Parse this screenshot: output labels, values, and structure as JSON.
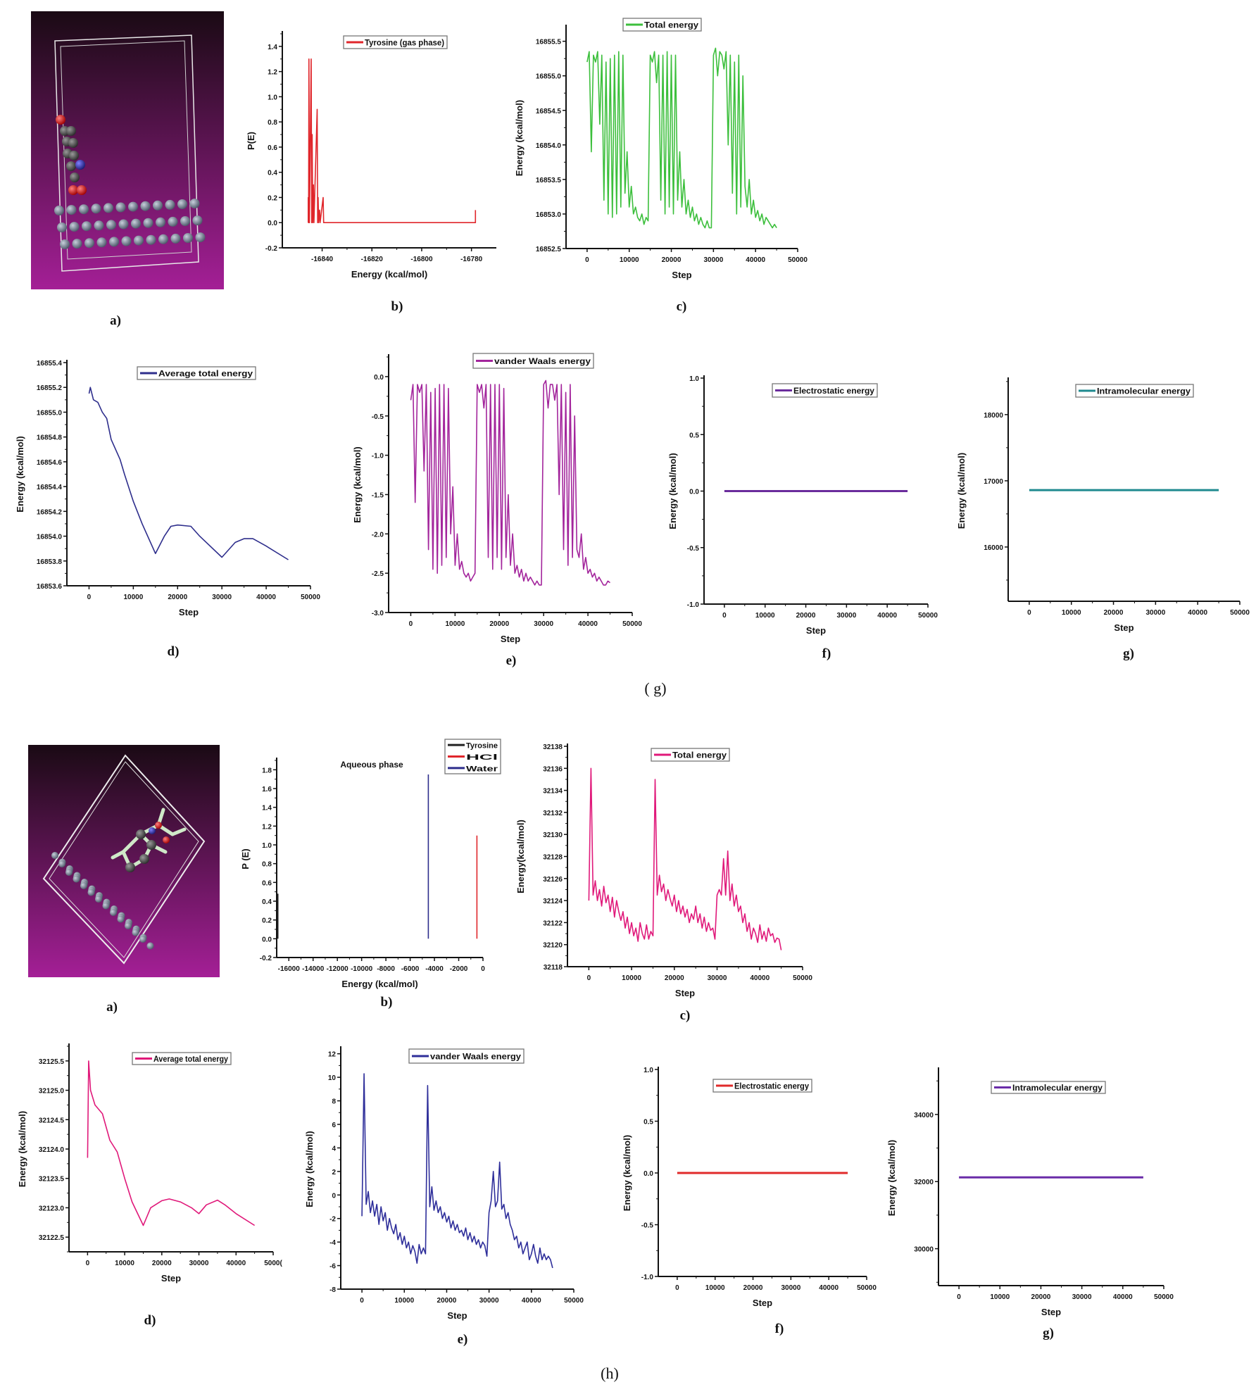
{
  "figure": {
    "captions": {
      "g": "( g)",
      "h": "(h)"
    },
    "panels_g": [
      "a)",
      "b)",
      "c)",
      "d)",
      "e)",
      "f)",
      "g)"
    ],
    "panels_h": [
      "a)",
      "b)",
      "c)",
      "d)",
      "e)",
      "f)",
      "g)"
    ],
    "molecule_colors": {
      "background_top": "#1a0a14",
      "background_bottom": "#a41f96",
      "surface_atom": "#6f7a8c",
      "carbon": "#4a4a4a",
      "oxygen": "#e01b1b",
      "nitrogen": "#2a2f8f",
      "hydrogen": "#cfe8c8"
    }
  },
  "chart_data": [
    {
      "type": "line",
      "mode": "impulse",
      "title": "",
      "xlabel": "Energy (kcal/mol)",
      "ylabel": "P(E)",
      "xlim": [
        -16856,
        -16770
      ],
      "ylim": [
        -0.2,
        1.5
      ],
      "xticks": [
        "-16840",
        "-16820",
        "-16800",
        "-16780"
      ],
      "yticks": [
        "-0.2",
        "0.0",
        "0.2",
        "0.4",
        "0.6",
        "0.8",
        "1.0",
        "1.2",
        "1.4"
      ],
      "legend": "top-center",
      "series": [
        {
          "name": "Tyrosine (gas phase)",
          "color": "#e0262b",
          "x": [
            -16845.6,
            -16845.6,
            -16845.45,
            -16845.3,
            -16845.1,
            -16844.4,
            -16844.2,
            -16844.0,
            -16843.8,
            -16843.5,
            -16843.3,
            -16842.0,
            -16841.8,
            -16841.6,
            -16841.4,
            -16841.0,
            -16840.8,
            -16839.6,
            -16839.4,
            -16778.4,
            -16778.4
          ],
          "y": [
            0,
            0.2,
            0,
            1.3,
            0,
            1.3,
            0,
            0.7,
            0,
            0.3,
            0,
            0.9,
            0,
            0.2,
            0,
            0.1,
            0,
            0.2,
            0,
            0,
            0.1
          ]
        }
      ]
    },
    {
      "type": "line",
      "title": "",
      "xlabel": "Step",
      "ylabel": "Energy (kcal/mol)",
      "xlim": [
        -5000,
        50000
      ],
      "ylim": [
        16852.5,
        16855.7
      ],
      "xticks": [
        "0",
        "10000",
        "20000",
        "30000",
        "40000",
        "50000"
      ],
      "yticks": [
        "16852.5",
        "16853.0",
        "16853.5",
        "16854.0",
        "16854.5",
        "16855.0",
        "16855.5"
      ],
      "legend": "top-center",
      "series": [
        {
          "name": "Total energy",
          "color": "#3cbf3c",
          "x_start": 0,
          "x_step": 500,
          "y": [
            16855.2,
            16855.35,
            16853.9,
            16855.3,
            16855.2,
            16855.35,
            16854.3,
            16855.3,
            16853.2,
            16855.2,
            16853.0,
            16855.25,
            16852.95,
            16855.3,
            16853.0,
            16855.35,
            16853.1,
            16855.3,
            16853.3,
            16853.9,
            16853.1,
            16853.4,
            16853.0,
            16853.1,
            16852.95,
            16852.9,
            16853.0,
            16852.85,
            16852.95,
            16852.9,
            16855.3,
            16855.2,
            16855.35,
            16854.9,
            16855.3,
            16853.2,
            16855.3,
            16853.0,
            16855.35,
            16853.1,
            16855.3,
            16853.0,
            16855.3,
            16853.2,
            16853.9,
            16853.1,
            16853.5,
            16853.0,
            16853.2,
            16852.95,
            16853.1,
            16852.9,
            16853.0,
            16852.85,
            16852.95,
            16852.85,
            16852.8,
            16852.9,
            16852.8,
            16852.8,
            16855.3,
            16855.4,
            16855.0,
            16855.35,
            16855.3,
            16855.1,
            16855.35,
            16854.0,
            16855.3,
            16853.3,
            16855.2,
            16853.0,
            16855.3,
            16853.1,
            16855.0,
            16853.4,
            16853.1,
            16853.5,
            16853.0,
            16853.2,
            16852.95,
            16853.05,
            16852.9,
            16853.0,
            16852.85,
            16852.95,
            16852.9,
            16852.85,
            16852.8,
            16852.85,
            16852.8
          ]
        }
      ]
    },
    {
      "type": "line",
      "title": "",
      "xlabel": "Step",
      "ylabel": "Energy (kcal/mol)",
      "xlim": [
        -5000,
        50000
      ],
      "ylim": [
        16853.6,
        16855.4
      ],
      "xticks": [
        "0",
        "10000",
        "20000",
        "30000",
        "40000",
        "50000"
      ],
      "yticks": [
        "16853.6",
        "16853.8",
        "16854.0",
        "16854.2",
        "16854.4",
        "16854.6",
        "16854.8",
        "16855.0",
        "16855.2",
        "16855.4"
      ],
      "legend": "top-center",
      "series": [
        {
          "name": "Average total energy",
          "color": "#2e2e8c",
          "x": [
            0,
            300,
            1000,
            2000,
            3000,
            4000,
            5000,
            6000,
            7000,
            8000,
            10000,
            12000,
            15000,
            17000,
            18500,
            20000,
            23000,
            25000,
            30000,
            33000,
            35000,
            37000,
            40000,
            45000
          ],
          "y": [
            16855.15,
            16855.2,
            16855.1,
            16855.08,
            16855.0,
            16854.95,
            16854.78,
            16854.7,
            16854.62,
            16854.5,
            16854.28,
            16854.1,
            16853.86,
            16854.0,
            16854.08,
            16854.09,
            16854.08,
            16854.0,
            16853.83,
            16853.95,
            16853.98,
            16853.98,
            16853.92,
            16853.81
          ]
        }
      ]
    },
    {
      "type": "line",
      "title": "",
      "xlabel": "Step",
      "ylabel": "Energy (kcal/mol)",
      "xlim": [
        -5000,
        50000
      ],
      "ylim": [
        -3.0,
        0.25
      ],
      "xticks": [
        "0",
        "10000",
        "20000",
        "30000",
        "40000",
        "50000"
      ],
      "yticks": [
        "-3.0",
        "-2.5",
        "-2.0",
        "-1.5",
        "-1.0",
        "-0.5",
        "0.0"
      ],
      "legend": "top-center",
      "series": [
        {
          "name": "vander Waals energy",
          "color": "#a3259c",
          "x_start": 0,
          "x_step": 500,
          "y": [
            -0.3,
            -0.1,
            -1.6,
            -0.1,
            -0.2,
            -0.1,
            -1.2,
            -0.1,
            -2.2,
            -0.2,
            -2.45,
            -0.15,
            -2.5,
            -0.1,
            -2.4,
            -0.1,
            -2.3,
            -0.15,
            -2.0,
            -1.4,
            -2.4,
            -2.0,
            -2.45,
            -2.35,
            -2.5,
            -2.55,
            -2.5,
            -2.6,
            -2.55,
            -2.5,
            -0.1,
            -0.2,
            -0.1,
            -0.4,
            -0.1,
            -2.3,
            -0.1,
            -2.45,
            -0.1,
            -2.3,
            -0.1,
            -2.45,
            -0.15,
            -2.3,
            -1.5,
            -2.4,
            -2.0,
            -2.5,
            -2.4,
            -2.55,
            -2.45,
            -2.6,
            -2.5,
            -2.6,
            -2.55,
            -2.6,
            -2.65,
            -2.6,
            -2.65,
            -2.65,
            -0.1,
            -0.05,
            -0.4,
            -0.1,
            -0.1,
            -0.3,
            -0.1,
            -1.5,
            -0.1,
            -2.2,
            -0.2,
            -2.4,
            -0.1,
            -2.3,
            -0.5,
            -2.2,
            -2.3,
            -2.0,
            -2.45,
            -2.3,
            -2.5,
            -2.45,
            -2.55,
            -2.5,
            -2.6,
            -2.55,
            -2.6,
            -2.65,
            -2.65,
            -2.6,
            -2.62
          ]
        }
      ]
    },
    {
      "type": "line",
      "title": "",
      "xlabel": "Step",
      "ylabel": "Energy (kcal/mol)",
      "xlim": [
        -5000,
        50000
      ],
      "ylim": [
        -1.0,
        1.0
      ],
      "xticks": [
        "0",
        "10000",
        "20000",
        "30000",
        "40000",
        "50000"
      ],
      "yticks": [
        "-1.0",
        "-0.5",
        "0.0",
        "0.5",
        "1.0"
      ],
      "legend": "top-center",
      "series": [
        {
          "name": "Electrostatic energy",
          "color": "#6a2c9c",
          "x": [
            0,
            45000
          ],
          "y": [
            0,
            0
          ]
        }
      ]
    },
    {
      "type": "line",
      "title": "",
      "xlabel": "Step",
      "ylabel": "Energy (kcal/mol)",
      "xlim": [
        -5000,
        50000
      ],
      "ylim": [
        15180,
        18520
      ],
      "xticks": [
        "0",
        "10000",
        "20000",
        "30000",
        "40000",
        "50000"
      ],
      "yticks": [
        "16000",
        "17000",
        "18000"
      ],
      "legend": "top-center",
      "series": [
        {
          "name": "Intramolecular energy",
          "color": "#1f8a8f",
          "x": [
            0,
            45000
          ],
          "y": [
            16860,
            16860
          ]
        }
      ]
    },
    {
      "type": "line",
      "mode": "impulse",
      "title": "Aqueous phase",
      "xlabel": "Energy (kcal/mol)",
      "ylabel": "P (E)",
      "xlim": [
        -17000,
        0
      ],
      "ylim": [
        -0.2,
        1.9
      ],
      "xticks": [
        "-16000",
        "-14000",
        "-12000",
        "-10000",
        "-8000",
        "-6000",
        "-4000",
        "-2000",
        "0"
      ],
      "yticks": [
        "-0.2",
        "0.0",
        "0.2",
        "0.4",
        "0.6",
        "0.8",
        "1.0",
        "1.2",
        "1.4",
        "1.6",
        "1.8"
      ],
      "legend": "top-right",
      "series": [
        {
          "name": "Tyrosine",
          "color": "#222222",
          "x": [
            -16900,
            -16900
          ],
          "y": [
            0,
            0.48
          ]
        },
        {
          "name": "HCl",
          "color": "#e0262b",
          "x": [
            -500,
            -500
          ],
          "y": [
            0,
            1.1
          ]
        },
        {
          "name": "Water",
          "color": "#2e2e8c",
          "x": [
            -4500,
            -4500
          ],
          "y": [
            0,
            1.75
          ]
        }
      ]
    },
    {
      "type": "line",
      "title": "",
      "xlabel": "Step",
      "ylabel": "Energy(kcal/mol)",
      "xlim": [
        -5000,
        50000
      ],
      "ylim": [
        32118,
        32138
      ],
      "xticks": [
        "0",
        "10000",
        "20000",
        "30000",
        "40000",
        "50000"
      ],
      "yticks": [
        "32118",
        "32120",
        "32122",
        "32124",
        "32126",
        "32128",
        "32130",
        "32132",
        "32134",
        "32136",
        "32138"
      ],
      "legend": "top-center",
      "series": [
        {
          "name": "Total energy",
          "color": "#e0197a",
          "x_start": 0,
          "x_step": 500,
          "y": [
            32124,
            32136,
            32124.5,
            32125.8,
            32124,
            32125,
            32123.5,
            32125.3,
            32123.8,
            32124.5,
            32123,
            32124.3,
            32122.5,
            32124,
            32123,
            32122.2,
            32123,
            32121.5,
            32122.5,
            32121,
            32122,
            32120.8,
            32121.5,
            32120.3,
            32122,
            32121,
            32120.5,
            32121.8,
            32120.5,
            32121.2,
            32120.8,
            32135,
            32124.5,
            32126.3,
            32124.8,
            32125.5,
            32124,
            32125,
            32124.2,
            32123.5,
            32124.5,
            32123,
            32124,
            32122.8,
            32123.5,
            32122.5,
            32123.2,
            32122,
            32122.8,
            32122.3,
            32123.5,
            32122,
            32122.8,
            32121.5,
            32122.5,
            32121.2,
            32122,
            32121.3,
            32121.5,
            32120.5,
            32124.5,
            32125,
            32124.5,
            32127.8,
            32124.5,
            32128.5,
            32124,
            32125.5,
            32123.5,
            32124.5,
            32123,
            32123.5,
            32122,
            32122.8,
            32121.2,
            32122,
            32120.5,
            32121.5,
            32121,
            32120.2,
            32121.8,
            32120.5,
            32121.2,
            32120.3,
            32121.5,
            32120.8,
            32121,
            32120.2,
            32120.6,
            32120.5,
            32119.5
          ]
        }
      ]
    },
    {
      "type": "line",
      "title": "",
      "xlabel": "Step",
      "ylabel": "Energy (kcal/mol)",
      "xlim": [
        -5000,
        50000
      ],
      "ylim": [
        32122.25,
        32125.75
      ],
      "xticks": [
        "0",
        "10000",
        "20000",
        "30000",
        "40000",
        "5000("
      ],
      "yticks": [
        "32122.5",
        "32123.0",
        "32123.5",
        "32124.0",
        "32124.5",
        "32125.0",
        "32125.5"
      ],
      "legend": "top-center",
      "series": [
        {
          "name": "Average total energy",
          "color": "#e0197a",
          "x": [
            0,
            300,
            800,
            2000,
            4000,
            6000,
            8000,
            10000,
            12000,
            15000,
            17000,
            20000,
            22000,
            25000,
            28000,
            30000,
            32000,
            35000,
            37000,
            40000,
            45000
          ],
          "y": [
            32123.85,
            32125.5,
            32125.0,
            32124.75,
            32124.6,
            32124.15,
            32123.95,
            32123.5,
            32123.1,
            32122.7,
            32123.0,
            32123.12,
            32123.15,
            32123.1,
            32123.0,
            32122.9,
            32123.05,
            32123.13,
            32123.05,
            32122.9,
            32122.7
          ]
        }
      ]
    },
    {
      "type": "line",
      "title": "",
      "xlabel": "Step",
      "ylabel": "Energy (kcal/mol)",
      "xlim": [
        -5000,
        50000
      ],
      "ylim": [
        -8,
        12.4
      ],
      "xticks": [
        "0",
        "10000",
        "20000",
        "30000",
        "40000",
        "50000"
      ],
      "yticks": [
        "-8",
        "-6",
        "-4",
        "-2",
        "0",
        "2",
        "4",
        "6",
        "8",
        "10",
        "12"
      ],
      "legend": "top-center",
      "series": [
        {
          "name": "vander Waals energy",
          "color": "#2e2e9a",
          "x_start": 0,
          "x_step": 500,
          "y": [
            -1.8,
            10.3,
            -0.8,
            0.3,
            -1.5,
            -0.5,
            -1.8,
            -0.8,
            -2.5,
            -1,
            -2.2,
            -1.5,
            -3,
            -2,
            -2.8,
            -3.3,
            -2.5,
            -3.8,
            -3.2,
            -4.2,
            -3.5,
            -4.5,
            -4,
            -5,
            -4.3,
            -4.8,
            -5.8,
            -4.2,
            -5,
            -4.5,
            -5,
            9.3,
            -1,
            0.7,
            -1.3,
            -0.5,
            -1.5,
            -1,
            -2,
            -1.5,
            -2.3,
            -1.8,
            -2.8,
            -2.2,
            -3,
            -2.5,
            -3.2,
            -3,
            -3.5,
            -2.8,
            -3.8,
            -3.2,
            -4,
            -3.5,
            -4.2,
            -3.8,
            -4.5,
            -4,
            -4.3,
            -5.2,
            -1.5,
            -0.5,
            2,
            -1,
            -0.5,
            2.8,
            -1.2,
            -0.8,
            -2,
            -1.5,
            -2.5,
            -3,
            -3.8,
            -3.5,
            -4.5,
            -4,
            -5,
            -4.5,
            -4,
            -5.5,
            -5,
            -4.2,
            -5.2,
            -5.8,
            -4.5,
            -5.5,
            -5,
            -5.5,
            -5.2,
            -5.5,
            -6.2
          ]
        }
      ]
    },
    {
      "type": "line",
      "title": "",
      "xlabel": "Step",
      "ylabel": "Energy (kcal/mol)",
      "xlim": [
        -5000,
        50000
      ],
      "ylim": [
        -1.0,
        1.0
      ],
      "xticks": [
        "0",
        "10000",
        "20000",
        "30000",
        "40000",
        "50000"
      ],
      "yticks": [
        "-1.0",
        "-0.5",
        "0.0",
        "0.5",
        "1.0"
      ],
      "legend": "top-center",
      "series": [
        {
          "name": "Electrostatic energy",
          "color": "#e02a2a",
          "x": [
            0,
            45000
          ],
          "y": [
            0,
            0
          ]
        }
      ]
    },
    {
      "type": "line",
      "title": "",
      "xlabel": "Step",
      "ylabel": "Energy (kcal/mol)",
      "xlim": [
        -5000,
        50000
      ],
      "ylim": [
        28900,
        35320
      ],
      "xticks": [
        "0",
        "10000",
        "20000",
        "30000",
        "40000",
        "50000"
      ],
      "yticks": [
        "30000",
        "32000",
        "34000"
      ],
      "legend": "top-center",
      "series": [
        {
          "name": "Intramolecular energy",
          "color": "#6a2ca8",
          "x": [
            0,
            45000
          ],
          "y": [
            32125,
            32125
          ]
        }
      ]
    }
  ]
}
